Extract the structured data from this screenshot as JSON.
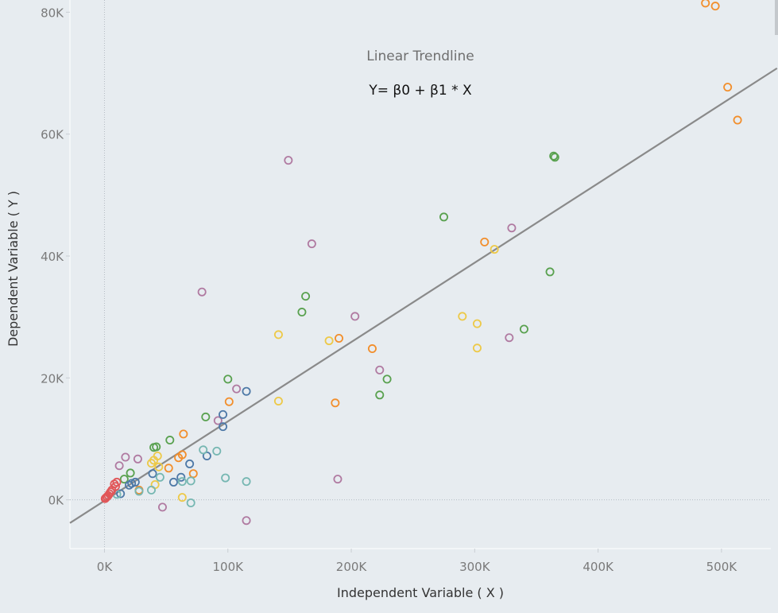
{
  "chart_data": {
    "type": "scatter",
    "title": "",
    "xlabel": "Independent Variable ( X )",
    "ylabel": "Dependent Variable ( Y )",
    "xlim": [
      -28000,
      540000
    ],
    "ylim": [
      -8000,
      82000
    ],
    "x_ticks": [
      0,
      100000,
      200000,
      300000,
      400000,
      500000
    ],
    "x_tick_labels": [
      "0K",
      "100K",
      "200K",
      "300K",
      "400K",
      "500K"
    ],
    "y_ticks": [
      0,
      20000,
      40000,
      60000,
      80000
    ],
    "y_tick_labels": [
      "0K",
      "20K",
      "40K",
      "60K",
      "80K"
    ],
    "grid": false,
    "annotations": {
      "title": "Linear Trendline",
      "equation": "Y= β0 +  β1 * X"
    },
    "trendline": {
      "color": "#8a8a8a",
      "points": [
        [
          -28000,
          -3800
        ],
        [
          545000,
          70800
        ]
      ]
    },
    "series": [
      {
        "color": "#f28e2b",
        "values": [
          [
            487000,
            81500
          ],
          [
            495000,
            81000
          ],
          [
            505000,
            67700
          ],
          [
            513000,
            62300
          ],
          [
            308000,
            42300
          ],
          [
            217000,
            24800
          ],
          [
            190000,
            26500
          ],
          [
            187000,
            15900
          ],
          [
            101000,
            16100
          ],
          [
            64000,
            10800
          ],
          [
            63000,
            7400
          ],
          [
            60000,
            6900
          ],
          [
            72000,
            4300
          ],
          [
            52000,
            5200
          ],
          [
            28000,
            1600
          ]
        ]
      },
      {
        "color": "#59a14f",
        "values": [
          [
            364000,
            56400
          ],
          [
            365000,
            56200
          ],
          [
            275000,
            46400
          ],
          [
            361000,
            37400
          ],
          [
            340000,
            28000
          ],
          [
            163000,
            33400
          ],
          [
            160000,
            30800
          ],
          [
            100000,
            19800
          ],
          [
            229000,
            19800
          ],
          [
            223000,
            17200
          ],
          [
            82000,
            13600
          ],
          [
            53000,
            9800
          ],
          [
            42000,
            8700
          ],
          [
            40000,
            8600
          ],
          [
            21000,
            4400
          ],
          [
            16000,
            3400
          ]
        ]
      },
      {
        "color": "#b07aa1",
        "values": [
          [
            149000,
            55700
          ],
          [
            168000,
            42000
          ],
          [
            330000,
            44600
          ],
          [
            79000,
            34100
          ],
          [
            203000,
            30100
          ],
          [
            328000,
            26600
          ],
          [
            223000,
            21300
          ],
          [
            107000,
            18200
          ],
          [
            92000,
            13000
          ],
          [
            17000,
            7000
          ],
          [
            27000,
            6700
          ],
          [
            12000,
            5600
          ],
          [
            189000,
            3400
          ],
          [
            47000,
            -1200
          ],
          [
            115000,
            -3400
          ]
        ]
      },
      {
        "color": "#edc948",
        "values": [
          [
            316000,
            41100
          ],
          [
            290000,
            30100
          ],
          [
            302000,
            28900
          ],
          [
            302000,
            24900
          ],
          [
            141000,
            27100
          ],
          [
            182000,
            26100
          ],
          [
            141000,
            16200
          ],
          [
            43000,
            7200
          ],
          [
            40000,
            6500
          ],
          [
            38000,
            6000
          ],
          [
            44000,
            5400
          ],
          [
            41000,
            2500
          ],
          [
            63000,
            400
          ]
        ]
      },
      {
        "color": "#4e79a7",
        "values": [
          [
            115000,
            17800
          ],
          [
            96000,
            14000
          ],
          [
            96000,
            12000
          ],
          [
            83000,
            7200
          ],
          [
            69000,
            5900
          ],
          [
            39000,
            4300
          ],
          [
            62000,
            3700
          ],
          [
            56000,
            2900
          ],
          [
            22000,
            2700
          ],
          [
            25000,
            2900
          ],
          [
            20000,
            2400
          ],
          [
            13000,
            1000
          ]
        ]
      },
      {
        "color": "#76b7b2",
        "values": [
          [
            80000,
            8200
          ],
          [
            91000,
            8000
          ],
          [
            98000,
            3600
          ],
          [
            115000,
            3000
          ],
          [
            70000,
            3100
          ],
          [
            63000,
            3000
          ],
          [
            45000,
            3700
          ],
          [
            38000,
            1600
          ],
          [
            70000,
            -500
          ],
          [
            28000,
            1400
          ],
          [
            10000,
            900
          ]
        ]
      },
      {
        "color": "#e15759",
        "values": [
          [
            10000,
            2900
          ],
          [
            8000,
            2600
          ],
          [
            9000,
            2200
          ],
          [
            6000,
            1600
          ],
          [
            5000,
            1300
          ],
          [
            4000,
            1000
          ],
          [
            3000,
            700
          ],
          [
            2000,
            500
          ],
          [
            1000,
            300
          ],
          [
            500,
            200
          ]
        ]
      }
    ]
  }
}
